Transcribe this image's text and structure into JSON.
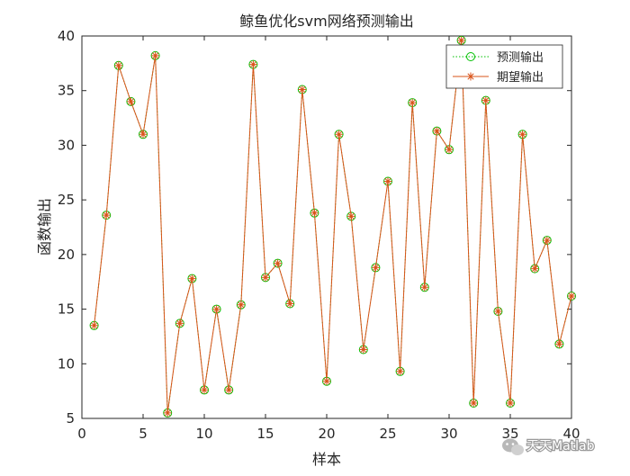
{
  "chart_data": {
    "type": "line",
    "title": "鲸鱼优化svm网络预测输出",
    "xlabel": "样本",
    "ylabel": "函数输出",
    "xlim": [
      0,
      40
    ],
    "ylim": [
      5,
      40
    ],
    "xticks": [
      "0",
      "5",
      "10",
      "15",
      "20",
      "25",
      "30",
      "35",
      "40"
    ],
    "yticks": [
      "5",
      "10",
      "15",
      "20",
      "25",
      "30",
      "35",
      "40"
    ],
    "grid": false,
    "legend_position": "top-right",
    "x": [
      1,
      2,
      3,
      4,
      5,
      6,
      7,
      8,
      9,
      10,
      11,
      12,
      13,
      14,
      15,
      16,
      17,
      18,
      19,
      20,
      21,
      22,
      23,
      24,
      25,
      26,
      27,
      28,
      29,
      30,
      31,
      32,
      33,
      34,
      35,
      36,
      37,
      38,
      39,
      40
    ],
    "series": [
      {
        "name": "预测输出",
        "color": "#00c000",
        "line_style": "dotted",
        "marker": "circle",
        "values": [
          13.5,
          23.6,
          37.3,
          34.0,
          31.0,
          38.2,
          5.5,
          13.7,
          17.8,
          7.6,
          15.0,
          7.6,
          15.4,
          37.4,
          17.9,
          19.2,
          15.5,
          35.1,
          23.8,
          8.4,
          31.0,
          23.5,
          11.3,
          18.8,
          26.7,
          9.3,
          33.9,
          17.0,
          31.3,
          29.6,
          39.6,
          6.4,
          34.1,
          14.8,
          6.4,
          31.0,
          18.7,
          21.3,
          11.8,
          16.2
        ]
      },
      {
        "name": "期望输出",
        "color": "#d95319",
        "line_style": "solid",
        "marker": "asterisk",
        "values": [
          13.5,
          23.6,
          37.3,
          34.0,
          31.0,
          38.2,
          5.5,
          13.7,
          17.8,
          7.6,
          15.0,
          7.6,
          15.4,
          37.4,
          17.9,
          19.2,
          15.5,
          35.1,
          23.8,
          8.4,
          31.0,
          23.5,
          11.3,
          18.8,
          26.7,
          9.3,
          33.9,
          17.0,
          31.3,
          29.6,
          39.6,
          6.4,
          34.1,
          14.8,
          6.4,
          31.0,
          18.7,
          21.3,
          11.8,
          16.2
        ]
      }
    ]
  },
  "watermark": {
    "icon": "wechat-icon",
    "text": "天天Matlab",
    "color": "#b0b0b0"
  }
}
